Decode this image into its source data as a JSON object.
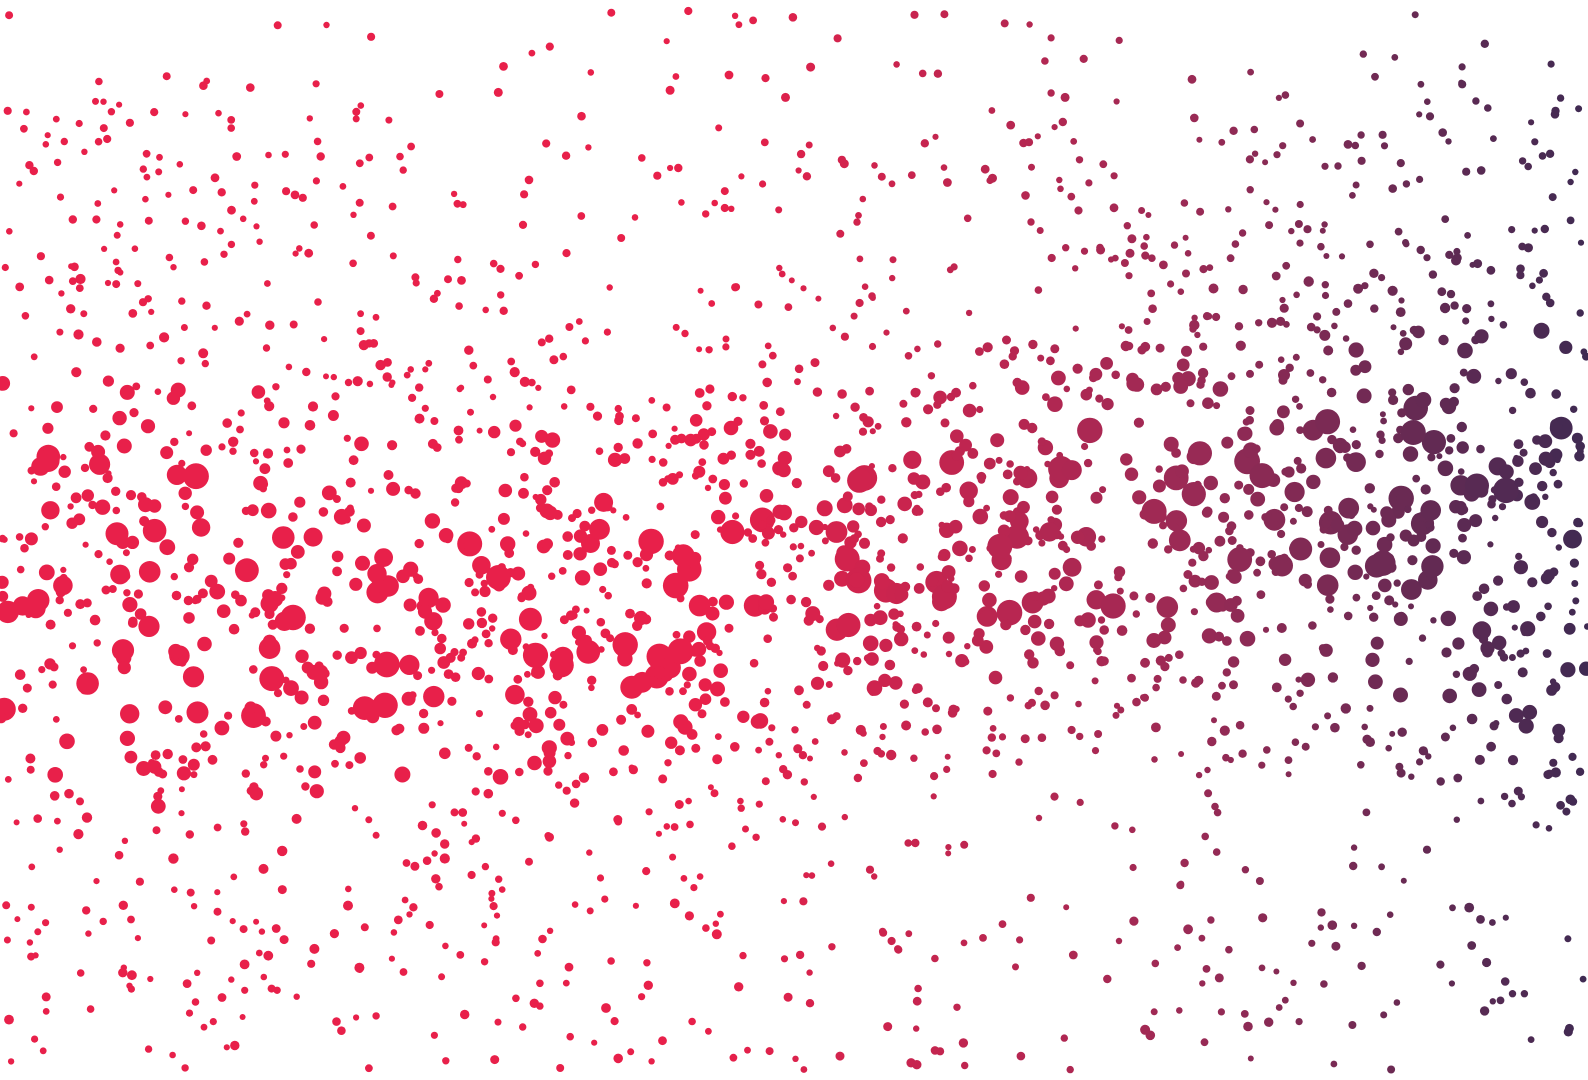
{
  "background": "#ffffff",
  "gradient": {
    "start_color": "#e8204a",
    "mid_color": "#9a2a55",
    "end_color": "#3f2a52"
  },
  "decoration": "dot-particle-field"
}
